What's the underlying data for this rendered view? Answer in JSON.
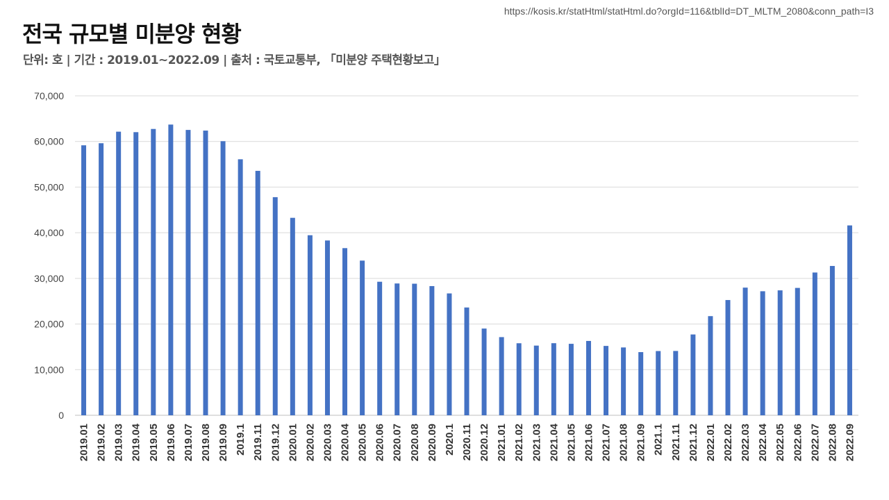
{
  "source_url": "https://kosis.kr/statHtml/statHtml.do?orgId=116&tblId=DT_MLTM_2080&conn_path=I3",
  "title": "전국 규모별 미분양 현황",
  "subtitle": "단위: 호 | 기간 : 2019.01~2022.09 | 출처 : 국토교통부, 「미분양 주택현황보고」",
  "colors": {
    "bar": "#4472C4",
    "grid": "#D9D9D9"
  },
  "chart_data": {
    "type": "bar",
    "title": "전국 규모별 미분양 현황",
    "xlabel": "",
    "ylabel": "",
    "unit": "호",
    "ylim": [
      0,
      70000
    ],
    "y_ticks": [
      0,
      10000,
      20000,
      30000,
      40000,
      50000,
      60000,
      70000
    ],
    "y_tick_labels": [
      "0",
      "10,000",
      "20,000",
      "30,000",
      "40,000",
      "50,000",
      "60,000",
      "70,000"
    ],
    "grid": true,
    "legend": "none",
    "categories": [
      "2019.01",
      "2019.02",
      "2019.03",
      "2019.04",
      "2019.05",
      "2019.06",
      "2019.07",
      "2019.08",
      "2019.09",
      "2019.1",
      "2019.11",
      "2019.12",
      "2020.01",
      "2020.02",
      "2020.03",
      "2020.04",
      "2020.05",
      "2020.06",
      "2020.07",
      "2020.08",
      "2020.09",
      "2020.1",
      "2020.11",
      "2020.12",
      "2021.01",
      "2021.02",
      "2021.03",
      "2021.04",
      "2021.05",
      "2021.06",
      "2021.07",
      "2021.08",
      "2021.09",
      "2021.1",
      "2021.11",
      "2021.12",
      "2022.01",
      "2022.02",
      "2022.03",
      "2022.04",
      "2022.05",
      "2022.06",
      "2022.07",
      "2022.08",
      "2022.09"
    ],
    "values": [
      59162,
      59614,
      62147,
      62041,
      62741,
      63705,
      62529,
      62385,
      60062,
      56098,
      53561,
      47797,
      43268,
      39456,
      38304,
      36629,
      33894,
      29262,
      28883,
      28831,
      28309,
      26703,
      23620,
      19005,
      17130,
      15786,
      15270,
      15798,
      15660,
      16289,
      15198,
      14864,
      13842,
      14075,
      14094,
      17710,
      21727,
      25254,
      27974,
      27180,
      27375,
      27910,
      31284,
      32722,
      41604
    ]
  }
}
